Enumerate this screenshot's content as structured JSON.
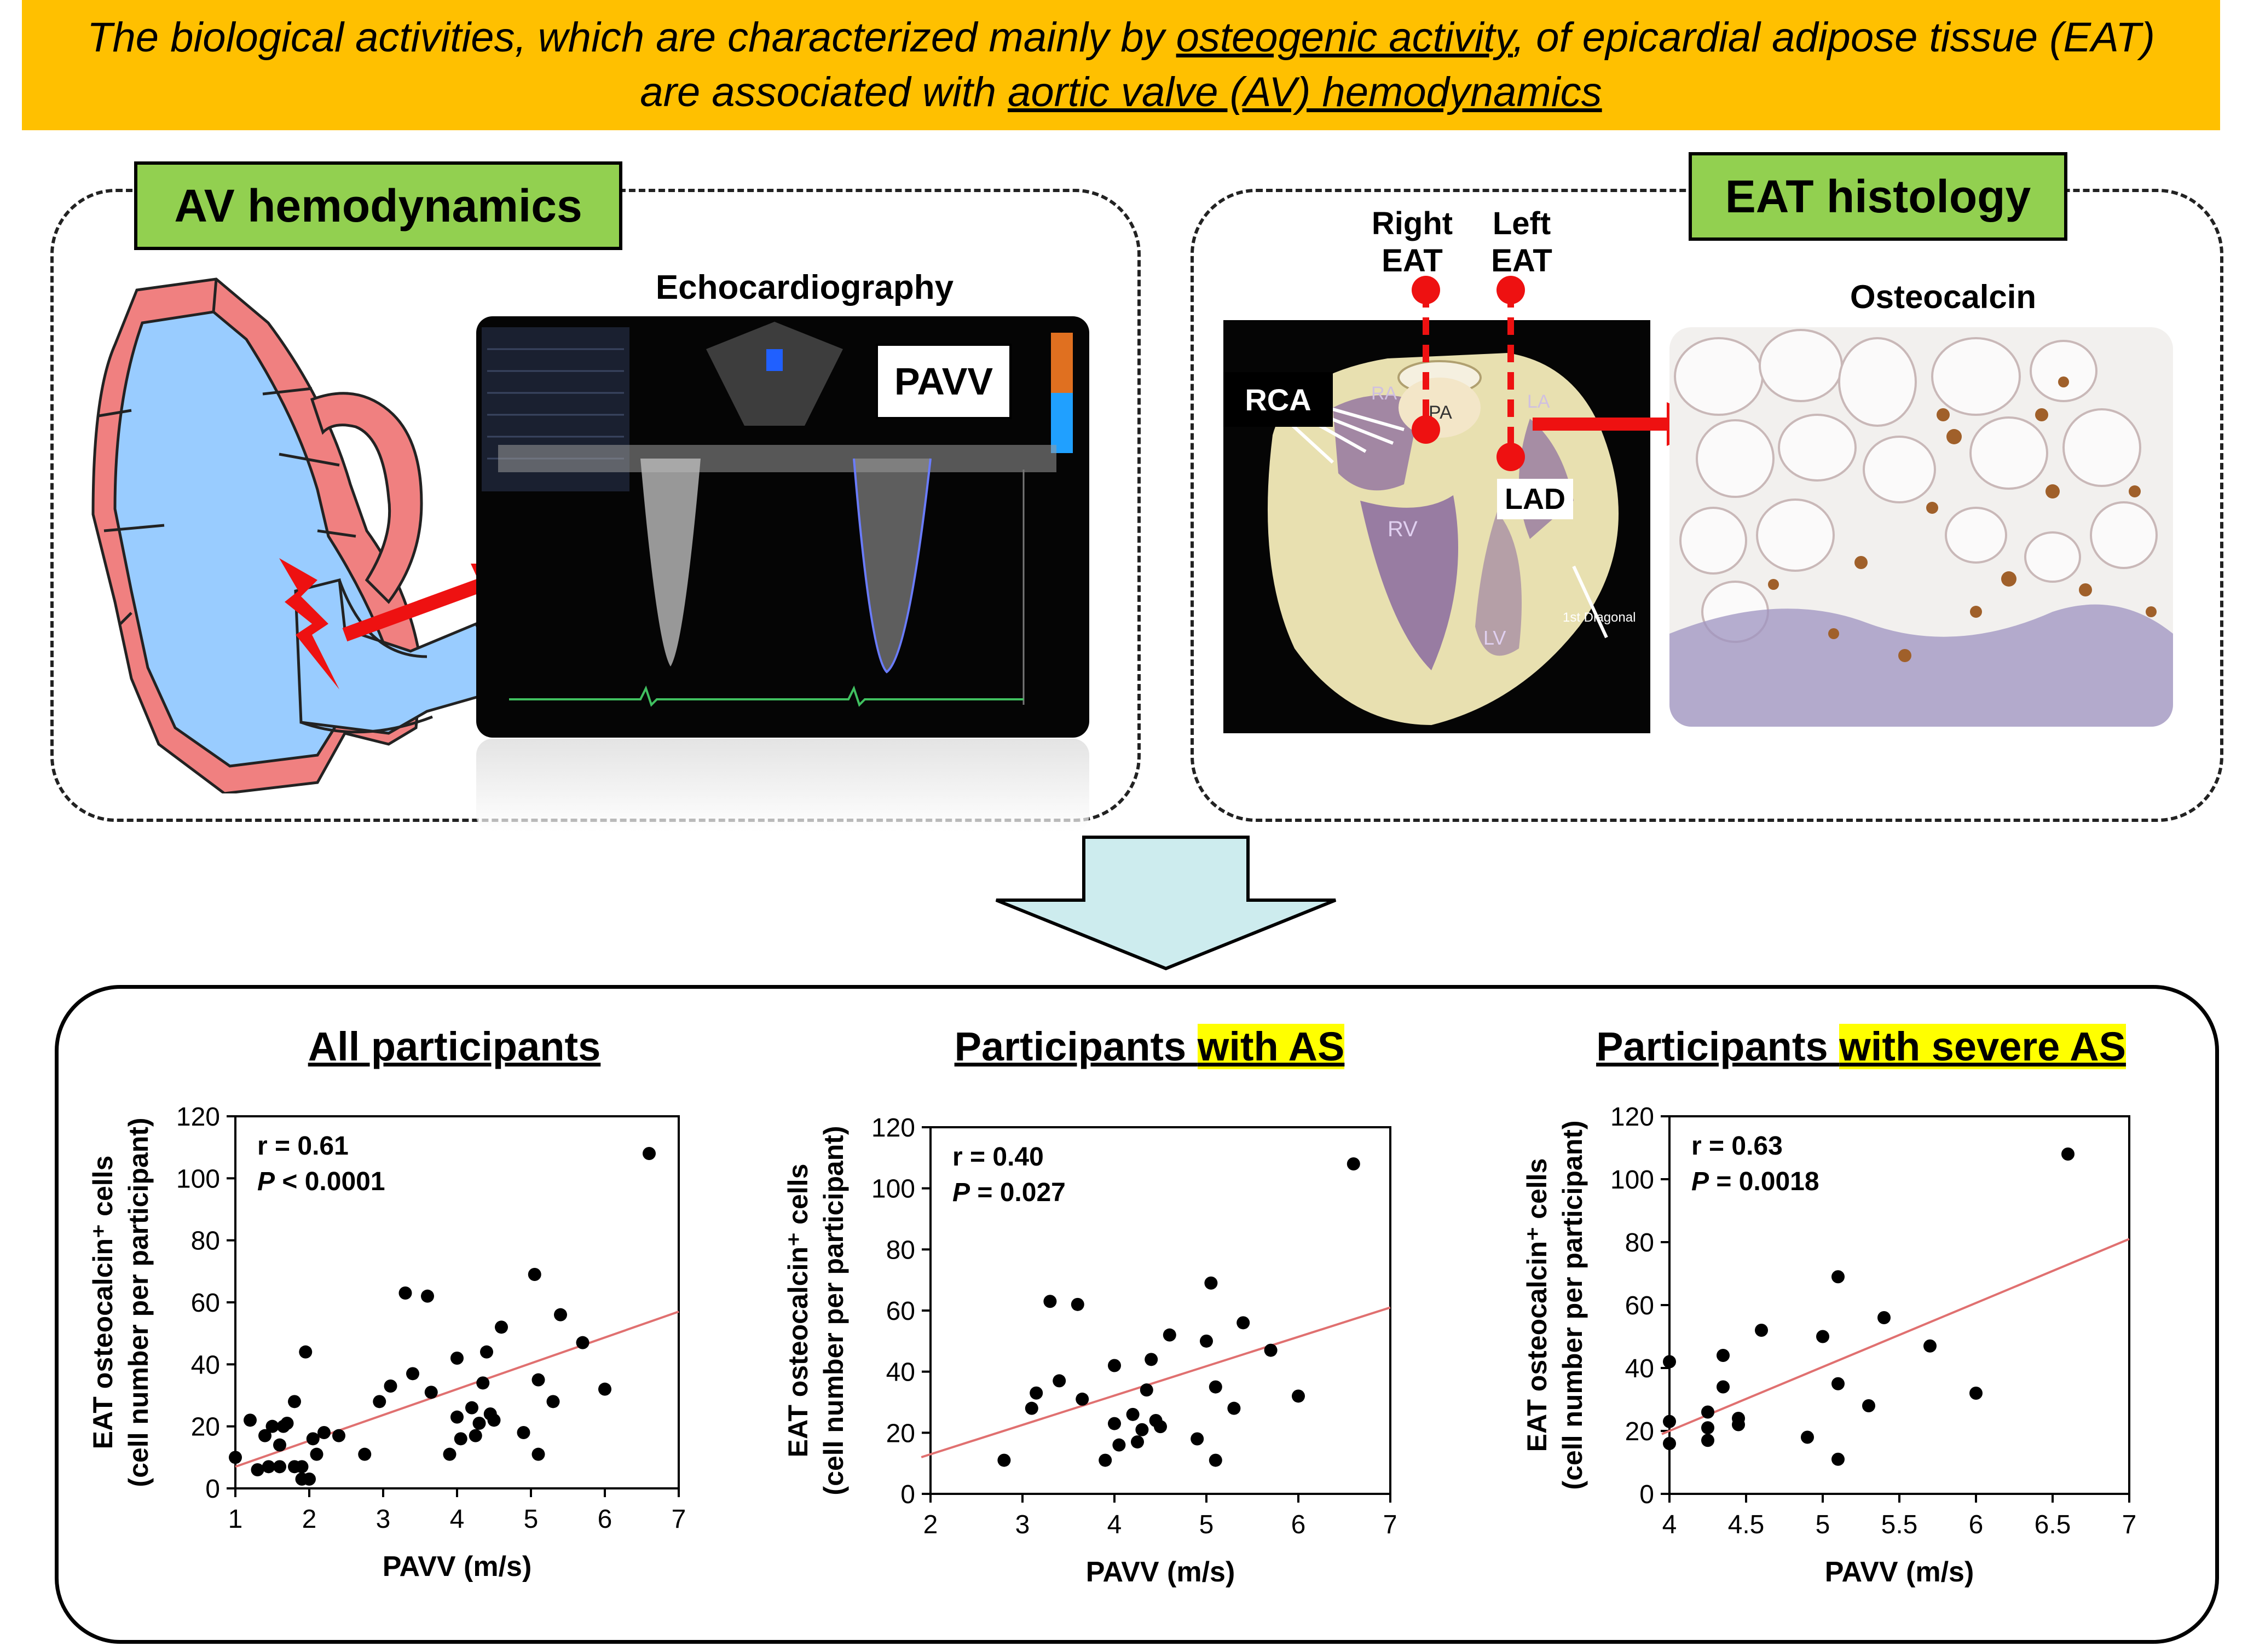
{
  "banner": {
    "line1_pre": "The biological activities, which are characterized mainly by ",
    "line1_u": "osteogenic activity",
    "line1_post": ", of epicardial adipose tissue (EAT)",
    "line2_pre": "are associated with ",
    "line2_u": "aortic valve (AV) hemodynamics"
  },
  "left_panel": {
    "label": "AV hemodynamics",
    "echo_title": "Echocardiography",
    "pavv_box": "PAVV"
  },
  "right_panel": {
    "label": "EAT histology",
    "right_eat": [
      "Right",
      "EAT"
    ],
    "left_eat": [
      "Left",
      "EAT"
    ],
    "rca": "RCA",
    "lad": "LAD",
    "heart_labels": {
      "ra": "RA",
      "pa": "PA",
      "la": "LA",
      "rv": "RV",
      "lv": "LV",
      "diag": "1st Diagonal"
    },
    "histo_title": "Osteocalcin"
  },
  "colors": {
    "banner": "#ffc000",
    "label_green": "#92d050",
    "heart_red": "#f08080",
    "heart_blue": "#99ccff",
    "arrow_red": "#ee1111",
    "down_arrow": "#cdecee",
    "fit_line": "#e07070"
  },
  "chart_data": [
    {
      "type": "scatter",
      "title": "All participants",
      "xlabel": "PAVV (m/s)",
      "ylabel": "EAT osteocalcin⁺ cells",
      "ylabel2": "(cell number per participant)",
      "stat_r": "r = 0.61",
      "stat_p_label": "P",
      "stat_p_value": " < 0.0001",
      "xlim": [
        1,
        7
      ],
      "ylim": [
        0,
        120
      ],
      "xticks": [
        "1",
        "2",
        "3",
        "4",
        "5",
        "6",
        "7"
      ],
      "yticks": [
        "0",
        "20",
        "40",
        "60",
        "80",
        "100",
        "120"
      ],
      "x": [
        1.0,
        1.2,
        1.3,
        1.4,
        1.45,
        1.5,
        1.6,
        1.6,
        1.65,
        1.7,
        1.8,
        1.8,
        1.9,
        1.9,
        1.95,
        2.0,
        2.05,
        2.1,
        2.2,
        2.4,
        2.75,
        2.95,
        3.1,
        3.3,
        3.4,
        3.6,
        3.65,
        3.9,
        4.0,
        4.0,
        4.05,
        4.2,
        4.25,
        4.3,
        4.35,
        4.4,
        4.45,
        4.5,
        4.6,
        4.9,
        5.05,
        5.1,
        5.1,
        5.3,
        5.4,
        5.7,
        6.0,
        6.6
      ],
      "y": [
        10,
        22,
        6,
        17,
        7,
        20,
        7,
        14,
        20,
        21,
        7,
        28,
        7,
        3,
        44,
        3,
        16,
        11,
        18,
        17,
        11,
        28,
        33,
        63,
        37,
        62,
        31,
        11,
        42,
        23,
        16,
        26,
        17,
        21,
        34,
        44,
        24,
        22,
        52,
        18,
        69,
        35,
        11,
        28,
        56,
        47,
        32,
        108
      ],
      "fit": {
        "x": [
          1,
          7
        ],
        "y": [
          7,
          57
        ]
      }
    },
    {
      "type": "scatter",
      "title_pre": "Participants ",
      "title_hl": "with AS",
      "xlabel": "PAVV (m/s)",
      "ylabel": "EAT osteocalcin⁺ cells",
      "ylabel2": "(cell number per participant)",
      "stat_r": "r = 0.40",
      "stat_p_label": "P",
      "stat_p_value": " = 0.027",
      "xlim": [
        2,
        7
      ],
      "ylim": [
        0,
        120
      ],
      "xticks": [
        "2",
        "3",
        "4",
        "5",
        "6",
        "7"
      ],
      "yticks": [
        "0",
        "20",
        "40",
        "60",
        "80",
        "100",
        "120"
      ],
      "x": [
        2.8,
        3.1,
        3.15,
        3.3,
        3.4,
        3.6,
        3.65,
        3.9,
        4.0,
        4.0,
        4.05,
        4.2,
        4.25,
        4.3,
        4.35,
        4.4,
        4.45,
        4.5,
        4.6,
        4.9,
        5.0,
        5.05,
        5.1,
        5.1,
        5.3,
        5.4,
        5.7,
        6.0,
        6.6
      ],
      "y": [
        11,
        28,
        33,
        63,
        37,
        62,
        31,
        11,
        42,
        23,
        16,
        26,
        17,
        21,
        34,
        44,
        24,
        22,
        52,
        18,
        50,
        69,
        35,
        11,
        28,
        56,
        47,
        32,
        108
      ],
      "fit": {
        "x": [
          1.9,
          7
        ],
        "y": [
          12,
          61
        ]
      }
    },
    {
      "type": "scatter",
      "title_pre": "Participants ",
      "title_hl": "with severe AS",
      "xlabel": "PAVV (m/s)",
      "ylabel": "EAT osteocalcin⁺ cells",
      "ylabel2": "(cell number per participant)",
      "stat_r": "r = 0.63",
      "stat_p_label": "P",
      "stat_p_value": " = 0.0018",
      "xlim": [
        4,
        7
      ],
      "ylim": [
        0,
        120
      ],
      "xticks": [
        "4",
        "4.5",
        "5",
        "5.5",
        "6",
        "6.5",
        "7"
      ],
      "yticks": [
        "0",
        "20",
        "40",
        "60",
        "80",
        "100",
        "120"
      ],
      "x": [
        4.0,
        4.0,
        4.0,
        4.25,
        4.25,
        4.25,
        4.35,
        4.35,
        4.45,
        4.45,
        4.6,
        4.9,
        5.0,
        5.1,
        5.1,
        5.1,
        5.3,
        5.4,
        5.7,
        6.0,
        6.6
      ],
      "y": [
        42,
        23,
        16,
        26,
        17,
        21,
        34,
        44,
        24,
        22,
        52,
        18,
        50,
        69,
        35,
        11,
        28,
        56,
        47,
        32,
        108
      ],
      "fit": {
        "x": [
          3.95,
          7
        ],
        "y": [
          19,
          81
        ]
      }
    }
  ]
}
